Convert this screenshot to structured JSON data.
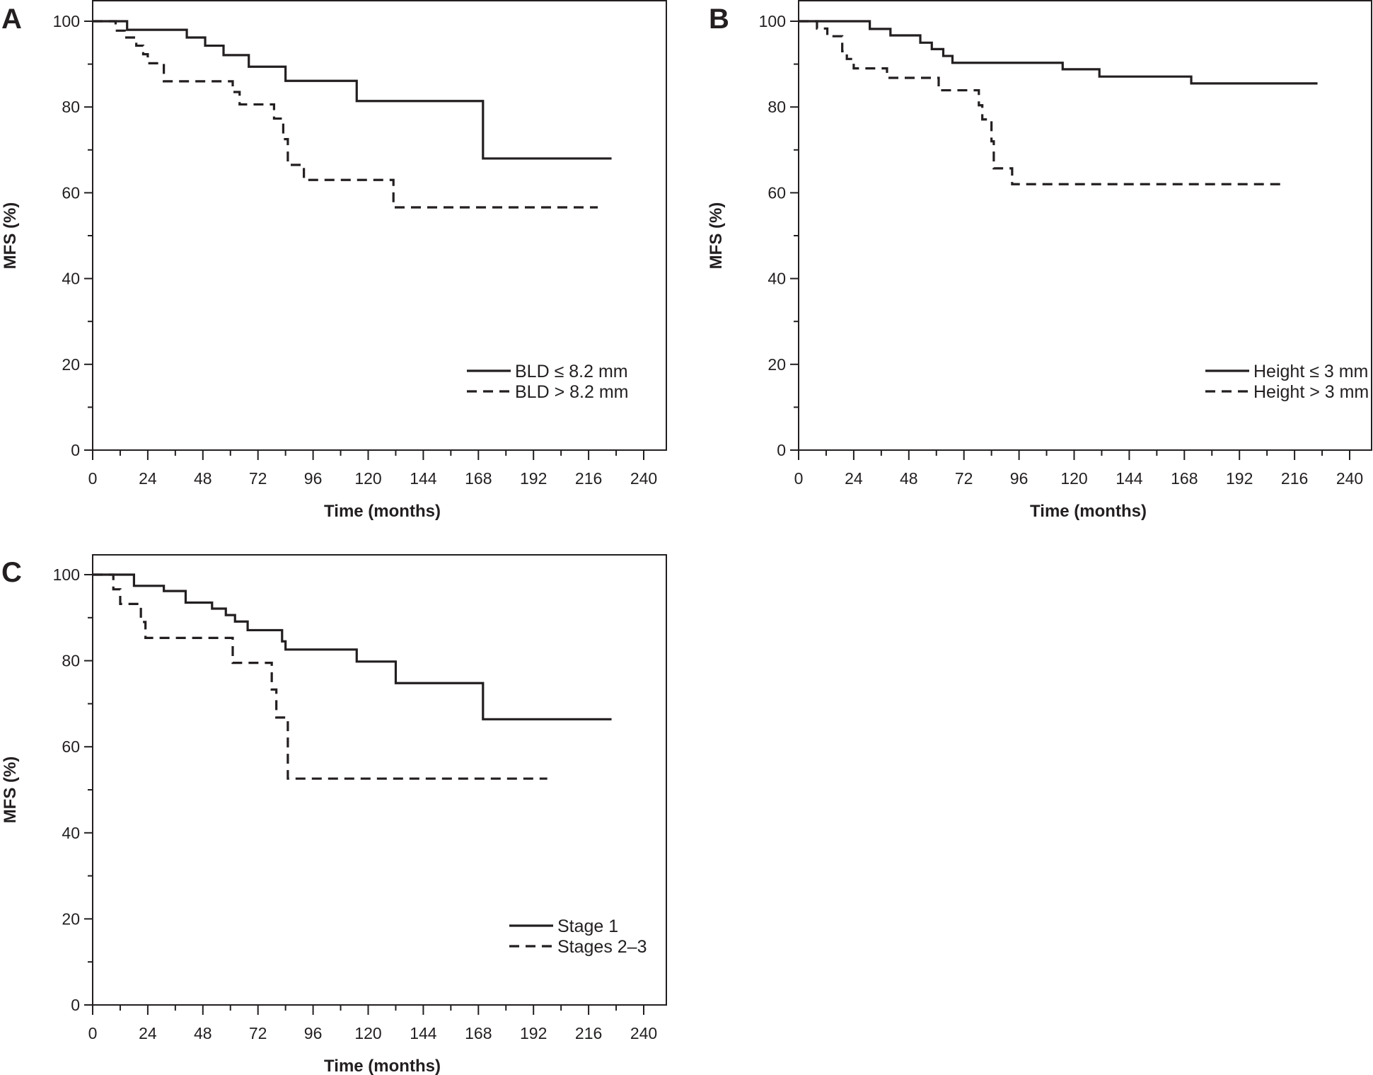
{
  "chart_data": [
    {
      "panel": "A",
      "type": "line",
      "subtype": "kaplan-meier step",
      "title": "",
      "xlabel": "Time (months)",
      "ylabel": "MFS (%)",
      "xlim": [
        0,
        240
      ],
      "ylim": [
        0,
        100
      ],
      "xticks": [
        0,
        24,
        48,
        72,
        96,
        120,
        144,
        168,
        192,
        216,
        240
      ],
      "yticks": [
        0,
        20,
        40,
        60,
        80,
        100
      ],
      "grid": false,
      "legend_position": "bottom-right",
      "series": [
        {
          "name": "BLD ≤ 8.2 mm",
          "style": "solid",
          "steps": [
            [
              0,
              100
            ],
            [
              15,
              98.0
            ],
            [
              41,
              96.2
            ],
            [
              49,
              94.3
            ],
            [
              57,
              92.1
            ],
            [
              68,
              89.4
            ],
            [
              84,
              86.1
            ],
            [
              115,
              81.4
            ],
            [
              170,
              68.0
            ]
          ],
          "end_time": 226
        },
        {
          "name": "BLD > 8.2 mm",
          "style": "dashed",
          "steps": [
            [
              0,
              100
            ],
            [
              10,
              97.8
            ],
            [
              14,
              96.2
            ],
            [
              19,
              94.3
            ],
            [
              22,
              92.3
            ],
            [
              24,
              90.2
            ],
            [
              31,
              86.0
            ],
            [
              61,
              83.5
            ],
            [
              64,
              80.6
            ],
            [
              79,
              77.3
            ],
            [
              83,
              72.5
            ],
            [
              85,
              66.5
            ],
            [
              92,
              63.0
            ],
            [
              131,
              56.6
            ]
          ],
          "end_time": 220
        }
      ]
    },
    {
      "panel": "B",
      "type": "line",
      "subtype": "kaplan-meier step",
      "title": "",
      "xlabel": "Time (months)",
      "ylabel": "MFS (%)",
      "xlim": [
        0,
        240
      ],
      "ylim": [
        0,
        100
      ],
      "xticks": [
        0,
        24,
        48,
        72,
        96,
        120,
        144,
        168,
        192,
        216,
        240
      ],
      "yticks": [
        0,
        20,
        40,
        60,
        80,
        100
      ],
      "grid": false,
      "legend_position": "bottom-right",
      "series": [
        {
          "name": "Height ≤ 3 mm",
          "style": "solid",
          "steps": [
            [
              0,
              100
            ],
            [
              31,
              98.2
            ],
            [
              40,
              96.7
            ],
            [
              53,
              95.0
            ],
            [
              58,
              93.5
            ],
            [
              63,
              91.9
            ],
            [
              67,
              90.3
            ],
            [
              115,
              88.8
            ],
            [
              131,
              87.1
            ],
            [
              171,
              85.5
            ]
          ],
          "end_time": 226
        },
        {
          "name": "Height > 3 mm",
          "style": "dashed",
          "steps": [
            [
              0,
              100
            ],
            [
              8,
              98.3
            ],
            [
              12.5,
              96.5
            ],
            [
              19,
              93.0
            ],
            [
              21,
              91.2
            ],
            [
              24,
              89.0
            ],
            [
              38.5,
              86.8
            ],
            [
              61,
              83.9
            ],
            [
              78.5,
              80.4
            ],
            [
              80,
              77.1
            ],
            [
              84,
              72.0
            ],
            [
              85,
              65.7
            ],
            [
              93,
              62.0
            ]
          ],
          "end_time": 210
        }
      ]
    },
    {
      "panel": "C",
      "type": "line",
      "subtype": "kaplan-meier step",
      "title": "",
      "xlabel": "Time (months)",
      "ylabel": "MFS (%)",
      "xlim": [
        0,
        240
      ],
      "ylim": [
        0,
        100
      ],
      "xticks": [
        0,
        24,
        48,
        72,
        96,
        120,
        144,
        168,
        192,
        216,
        240
      ],
      "yticks": [
        0,
        20,
        40,
        60,
        80,
        100
      ],
      "grid": false,
      "legend_position": "bottom-right",
      "series": [
        {
          "name": "Stage 1",
          "style": "solid",
          "steps": [
            [
              0,
              100
            ],
            [
              18,
              97.4
            ],
            [
              31,
              96.2
            ],
            [
              40.5,
              93.5
            ],
            [
              52,
              92.1
            ],
            [
              58,
              90.6
            ],
            [
              62,
              89.1
            ],
            [
              67.5,
              87.1
            ],
            [
              82.5,
              84.5
            ],
            [
              84,
              82.6
            ],
            [
              115,
              79.8
            ],
            [
              132,
              74.8
            ],
            [
              170,
              66.4
            ]
          ],
          "end_time": 226
        },
        {
          "name": "Stages 2–3",
          "style": "dashed",
          "steps": [
            [
              0,
              100
            ],
            [
              9,
              96.6
            ],
            [
              12,
              93.2
            ],
            [
              21,
              89.0
            ],
            [
              23,
              85.3
            ],
            [
              61,
              79.5
            ],
            [
              78,
              73.3
            ],
            [
              80,
              66.8
            ],
            [
              85,
              52.6
            ]
          ],
          "end_time": 198
        }
      ]
    }
  ]
}
